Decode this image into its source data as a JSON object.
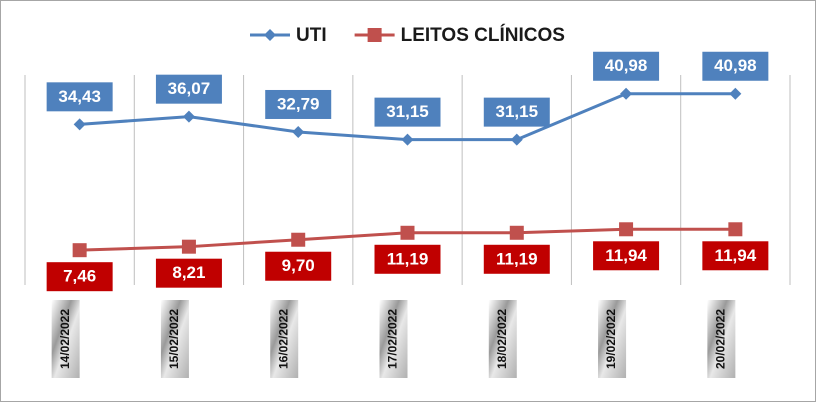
{
  "chart_data": {
    "type": "line",
    "categories": [
      "14/02/2022",
      "15/02/2022",
      "16/02/2022",
      "17/02/2022",
      "18/02/2022",
      "19/02/2022",
      "20/02/2022"
    ],
    "series": [
      {
        "name": "UTI",
        "color": "#4f81bd",
        "marker": "diamond",
        "label_position": "above",
        "values": [
          34.43,
          36.07,
          32.79,
          31.15,
          31.15,
          40.98,
          40.98
        ],
        "value_labels": [
          "34,43",
          "36,07",
          "32,79",
          "31,15",
          "31,15",
          "40,98",
          "40,98"
        ]
      },
      {
        "name": "LEITOS CLÍNICOS",
        "color": "#c0504d",
        "label_color": "#c00000",
        "marker": "square",
        "label_position": "below",
        "values": [
          7.46,
          8.21,
          9.7,
          11.19,
          11.19,
          11.94,
          11.94
        ],
        "value_labels": [
          "7,46",
          "8,21",
          "9,70",
          "11,19",
          "11,19",
          "11,94",
          "11,94"
        ]
      }
    ],
    "ylim": [
      0,
      45
    ],
    "legend": "top"
  }
}
